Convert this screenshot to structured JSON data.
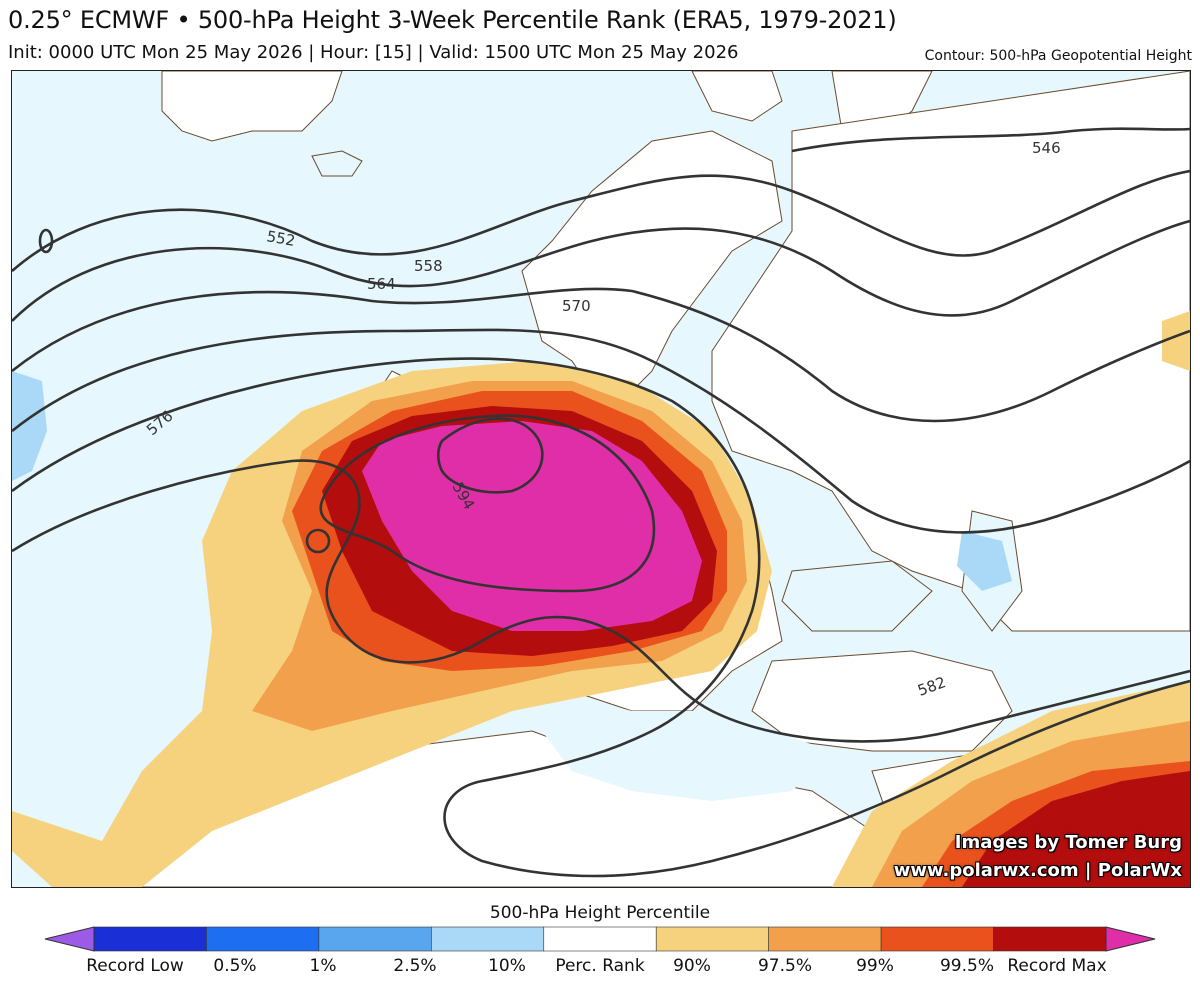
{
  "header": {
    "title": "0.25° ECMWF • 500-hPa Height 3-Week Percentile Rank (ERA5, 1979-2021)",
    "subtitle": "Init: 0000 UTC Mon 25 May 2026 | Hour: [15] | Valid: 1500 UTC Mon 25 May 2026",
    "contour_note": "Contour: 500-hPa Geopotential Height"
  },
  "map": {
    "contour_labels": [
      "546",
      "552",
      "558",
      "564",
      "570",
      "576",
      "582",
      "594"
    ]
  },
  "credits": {
    "line1": "Images by Tomer Burg",
    "line2": "www.polarwx.com | PolarWx"
  },
  "colorbar": {
    "title": "500-hPa Height Percentile",
    "ticks": [
      "Record Low",
      "0.5%",
      "1%",
      "2.5%",
      "10%",
      "Perc. Rank",
      "90%",
      "97.5%",
      "99%",
      "99.5%",
      "Record Max"
    ],
    "colors": [
      "#9b5be6",
      "#1b2fd6",
      "#1e6ef2",
      "#5aa6ee",
      "#a9d9f6",
      "#ffffff",
      "#f6d27e",
      "#f2a04c",
      "#e9521c",
      "#b30d0d",
      "#df2ea8"
    ]
  },
  "palette": {
    "land": "#ffffff",
    "ocean_low": "#e6f7fd",
    "p90": "#f6d27e",
    "p975": "#f2a04c",
    "p99": "#e9521c",
    "p995": "#b30d0d",
    "record_max": "#df2ea8",
    "low_blue": "#a9d9f6",
    "contour": "#333333",
    "border": "#6b4a2e"
  }
}
